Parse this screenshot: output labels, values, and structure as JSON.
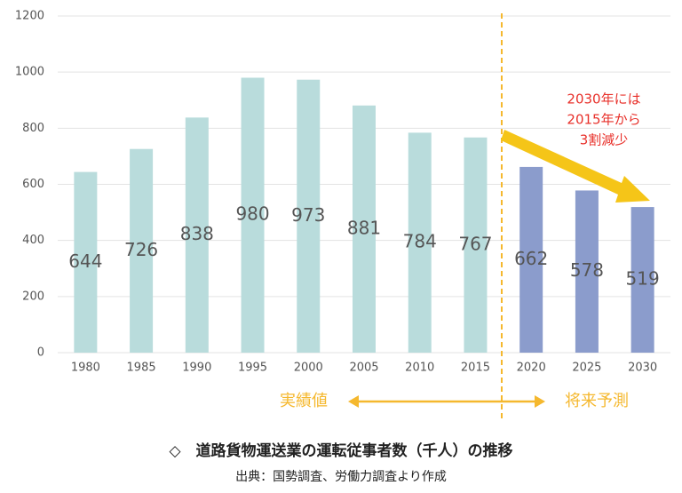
{
  "chart_data": {
    "type": "bar",
    "title": "◇　道路貨物運送業の運転従事者数（千人）の推移",
    "source": "出典：国勢調査、労働力調査より作成",
    "categories": [
      "1980",
      "1985",
      "1990",
      "1995",
      "2000",
      "2005",
      "2010",
      "2015",
      "2020",
      "2025",
      "2030"
    ],
    "values": [
      644,
      726,
      838,
      980,
      973,
      881,
      784,
      767,
      662,
      578,
      519
    ],
    "colors": [
      "#b9dcdc",
      "#b9dcdc",
      "#b9dcdc",
      "#b9dcdc",
      "#b9dcdc",
      "#b9dcdc",
      "#b9dcdc",
      "#b9dcdc",
      "#8b9ccc",
      "#8b9ccc",
      "#8b9ccc"
    ],
    "ylim": [
      0,
      1200
    ],
    "yticks": [
      0,
      200,
      400,
      600,
      800,
      1000,
      1200
    ],
    "grid": true,
    "annotations": {
      "forecast_note": [
        "2030年には",
        "2015年から",
        "3割減少"
      ],
      "actual": "実績値",
      "forecast": "将来予測"
    }
  }
}
